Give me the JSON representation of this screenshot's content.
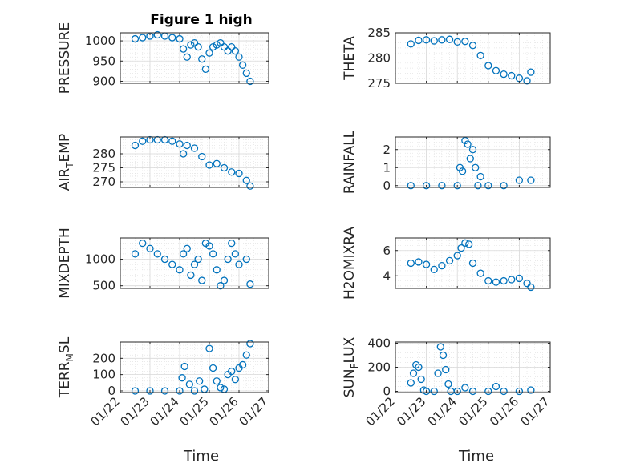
{
  "figure": {
    "title": "Figure 1 high",
    "xlabel": "Time",
    "marker_color": "#0072BD"
  },
  "x_ticks": [
    "01/22",
    "01/23",
    "01/24",
    "01/25",
    "01/26",
    "01/27"
  ],
  "chart_data": [
    {
      "type": "scatter",
      "ylabel": "PRESSURE",
      "ylim": [
        895,
        1020
      ],
      "yticks": [
        900,
        950,
        1000
      ],
      "grid": true,
      "x": [
        "01/22 12:00",
        "01/22 18:00",
        "01/23 00:00",
        "01/23 06:00",
        "01/23 12:00",
        "01/23 18:00",
        "01/24 00:00",
        "01/24 03:00",
        "01/24 06:00",
        "01/24 09:00",
        "01/24 12:00",
        "01/24 15:00",
        "01/24 18:00",
        "01/24 21:00",
        "01/25 00:00",
        "01/25 03:00",
        "01/25 06:00",
        "01/25 09:00",
        "01/25 12:00",
        "01/25 15:00",
        "01/25 18:00",
        "01/25 21:00",
        "01/26 00:00",
        "01/26 03:00",
        "01/26 06:00",
        "01/26 09:00"
      ],
      "y": [
        1005,
        1008,
        1012,
        1015,
        1012,
        1008,
        1005,
        980,
        960,
        990,
        995,
        985,
        955,
        930,
        970,
        985,
        990,
        995,
        985,
        975,
        985,
        975,
        960,
        940,
        920,
        900
      ]
    },
    {
      "type": "scatter",
      "ylabel": "THETA",
      "ylim": [
        275,
        285
      ],
      "yticks": [
        275,
        280,
        285
      ],
      "grid": true,
      "x": [
        "01/22 12:00",
        "01/22 18:00",
        "01/23 00:00",
        "01/23 06:00",
        "01/23 12:00",
        "01/23 18:00",
        "01/24 00:00",
        "01/24 06:00",
        "01/24 12:00",
        "01/24 18:00",
        "01/25 00:00",
        "01/25 06:00",
        "01/25 12:00",
        "01/25 18:00",
        "01/26 00:00",
        "01/26 06:00",
        "01/26 09:00"
      ],
      "y": [
        282.8,
        283.5,
        283.6,
        283.4,
        283.6,
        283.7,
        283.2,
        283.3,
        282.5,
        280.5,
        278.5,
        277.5,
        276.8,
        276.5,
        276.0,
        275.5,
        277.2
      ]
    },
    {
      "type": "scatter",
      "ylabel": "AIR_TEMP",
      "ylim": [
        268,
        286
      ],
      "yticks": [
        270,
        275,
        280
      ],
      "grid": true,
      "x": [
        "01/22 12:00",
        "01/22 18:00",
        "01/23 00:00",
        "01/23 06:00",
        "01/23 12:00",
        "01/23 18:00",
        "01/24 00:00",
        "01/24 03:00",
        "01/24 06:00",
        "01/24 12:00",
        "01/24 18:00",
        "01/25 00:00",
        "01/25 06:00",
        "01/25 12:00",
        "01/25 18:00",
        "01/26 00:00",
        "01/26 06:00",
        "01/26 09:00"
      ],
      "y": [
        283,
        284.5,
        285,
        285,
        285,
        284.5,
        283.5,
        280,
        283,
        282,
        279,
        276,
        276.5,
        275,
        273.5,
        273,
        270.5,
        268.5
      ]
    },
    {
      "type": "scatter",
      "ylabel": "RAINFALL",
      "ylim": [
        -0.1,
        2.7
      ],
      "yticks": [
        0,
        1,
        2
      ],
      "grid": true,
      "x": [
        "01/22 12:00",
        "01/23 00:00",
        "01/23 12:00",
        "01/24 00:00",
        "01/24 02:00",
        "01/24 04:00",
        "01/24 06:00",
        "01/24 08:00",
        "01/24 10:00",
        "01/24 12:00",
        "01/24 14:00",
        "01/24 16:00",
        "01/24 18:00",
        "01/25 00:00",
        "01/25 12:00",
        "01/26 00:00",
        "01/26 09:00"
      ],
      "y": [
        0,
        0,
        0,
        0,
        1.0,
        0.8,
        2.5,
        2.3,
        1.5,
        2.0,
        1.0,
        0,
        0.5,
        0,
        0,
        0.3,
        0.3
      ]
    },
    {
      "type": "scatter",
      "ylabel": "MIXDEPTH",
      "ylim": [
        450,
        1400
      ],
      "yticks": [
        500,
        1000
      ],
      "grid": true,
      "x": [
        "01/22 12:00",
        "01/22 18:00",
        "01/23 00:00",
        "01/23 06:00",
        "01/23 12:00",
        "01/23 18:00",
        "01/24 00:00",
        "01/24 03:00",
        "01/24 06:00",
        "01/24 09:00",
        "01/24 12:00",
        "01/24 15:00",
        "01/24 18:00",
        "01/24 21:00",
        "01/25 00:00",
        "01/25 03:00",
        "01/25 06:00",
        "01/25 09:00",
        "01/25 12:00",
        "01/25 15:00",
        "01/25 18:00",
        "01/25 21:00",
        "01/26 00:00",
        "01/26 06:00",
        "01/26 09:00"
      ],
      "y": [
        1100,
        1300,
        1200,
        1100,
        1000,
        900,
        800,
        1100,
        1200,
        700,
        900,
        1000,
        600,
        1300,
        1250,
        1100,
        800,
        500,
        600,
        1000,
        1300,
        1100,
        900,
        1000,
        530
      ]
    },
    {
      "type": "scatter",
      "ylabel": "H2OMIXRA",
      "ylim": [
        3,
        7
      ],
      "yticks": [
        4,
        6
      ],
      "grid": true,
      "x": [
        "01/22 12:00",
        "01/22 18:00",
        "01/23 00:00",
        "01/23 06:00",
        "01/23 12:00",
        "01/23 18:00",
        "01/24 00:00",
        "01/24 03:00",
        "01/24 06:00",
        "01/24 09:00",
        "01/24 12:00",
        "01/24 18:00",
        "01/25 00:00",
        "01/25 06:00",
        "01/25 12:00",
        "01/25 18:00",
        "01/26 00:00",
        "01/26 06:00",
        "01/26 09:00"
      ],
      "y": [
        5.0,
        5.1,
        4.9,
        4.5,
        4.8,
        5.2,
        5.6,
        6.2,
        6.6,
        6.5,
        5.0,
        4.2,
        3.6,
        3.5,
        3.6,
        3.7,
        3.8,
        3.4,
        3.1
      ]
    },
    {
      "type": "scatter",
      "ylabel": "TERR_MSL",
      "ylim": [
        -10,
        300
      ],
      "yticks": [
        0,
        100,
        200
      ],
      "grid": true,
      "x": [
        "01/22 12:00",
        "01/23 00:00",
        "01/23 12:00",
        "01/24 00:00",
        "01/24 02:00",
        "01/24 04:00",
        "01/24 08:00",
        "01/24 12:00",
        "01/24 16:00",
        "01/24 20:00",
        "01/25 00:00",
        "01/25 03:00",
        "01/25 06:00",
        "01/25 09:00",
        "01/25 12:00",
        "01/25 15:00",
        "01/25 18:00",
        "01/25 21:00",
        "01/26 00:00",
        "01/26 03:00",
        "01/26 06:00",
        "01/26 09:00"
      ],
      "y": [
        0,
        0,
        0,
        0,
        80,
        150,
        40,
        0,
        60,
        10,
        260,
        140,
        60,
        20,
        10,
        100,
        120,
        70,
        140,
        160,
        220,
        290
      ]
    },
    {
      "type": "scatter",
      "ylabel": "SUN_FLUX",
      "ylim": [
        -10,
        410
      ],
      "yticks": [
        0,
        200,
        400
      ],
      "grid": true,
      "x": [
        "01/22 12:00",
        "01/22 14:00",
        "01/22 16:00",
        "01/22 18:00",
        "01/22 20:00",
        "01/22 22:00",
        "01/23 00:00",
        "01/23 06:00",
        "01/23 09:00",
        "01/23 11:00",
        "01/23 13:00",
        "01/23 15:00",
        "01/23 17:00",
        "01/23 19:00",
        "01/24 00:00",
        "01/24 06:00",
        "01/24 12:00",
        "01/25 00:00",
        "01/25 06:00",
        "01/25 12:00",
        "01/26 00:00",
        "01/26 09:00"
      ],
      "y": [
        70,
        150,
        220,
        200,
        100,
        10,
        0,
        0,
        150,
        370,
        300,
        180,
        60,
        0,
        0,
        30,
        0,
        0,
        40,
        0,
        0,
        10
      ]
    }
  ]
}
